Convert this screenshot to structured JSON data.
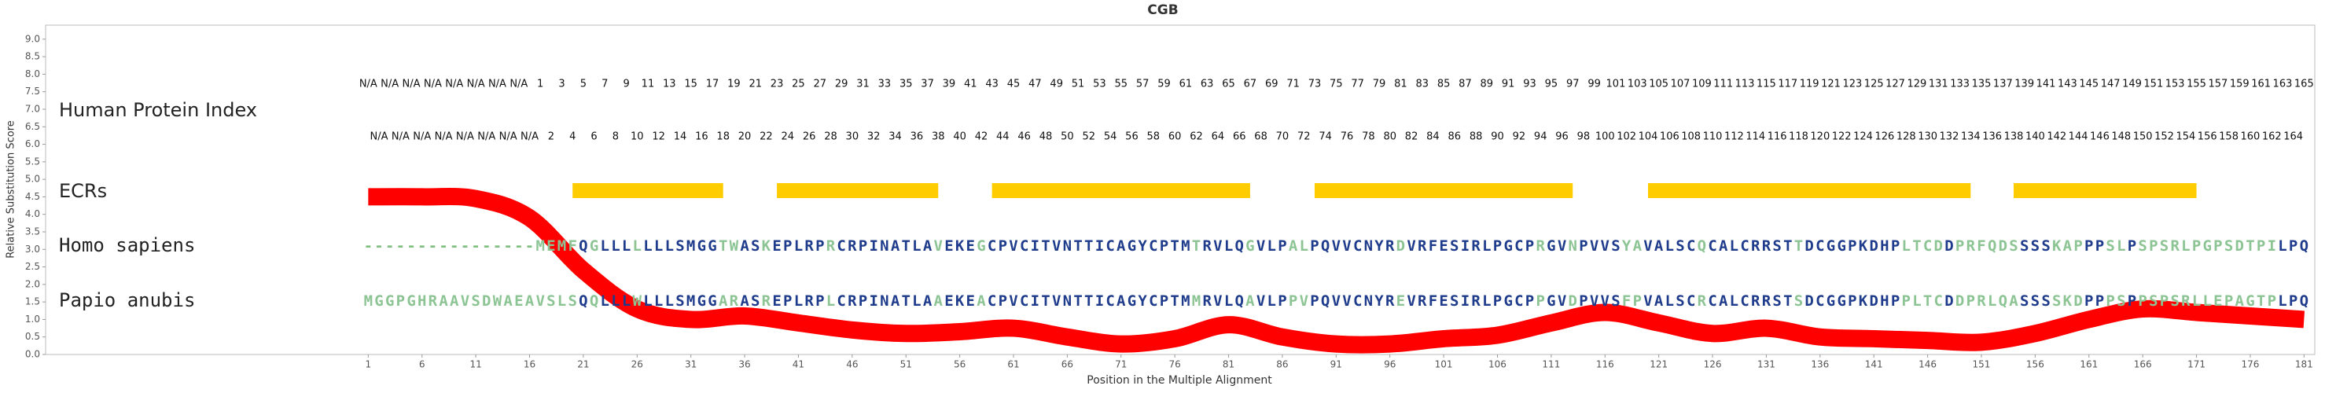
{
  "chart_data": {
    "type": "alignment",
    "title": "CGB",
    "xlabel": "Position in the Multiple Alignment",
    "ylabel": "Relative Substitution Score",
    "xlim": [
      -29,
      182
    ],
    "ylim": [
      0,
      9.4
    ],
    "xticks": [
      1,
      6,
      11,
      16,
      21,
      26,
      31,
      36,
      41,
      46,
      51,
      56,
      61,
      66,
      71,
      76,
      81,
      86,
      91,
      96,
      101,
      106,
      111,
      116,
      121,
      126,
      131,
      136,
      141,
      146,
      151,
      156,
      161,
      166,
      171,
      176,
      181
    ],
    "yticks": [
      {
        "value": 0,
        "label": "0.0"
      },
      {
        "value": 0.5,
        "label": "0.5"
      },
      {
        "value": 1,
        "label": "1.0"
      },
      {
        "value": 1.5,
        "label": "1.5"
      },
      {
        "value": 2,
        "label": "2.0"
      },
      {
        "value": 2.5,
        "label": "2.5"
      },
      {
        "value": 3,
        "label": "3.0"
      },
      {
        "value": 3.5,
        "label": "3.5"
      },
      {
        "value": 4,
        "label": "4.0"
      },
      {
        "value": 4.5,
        "label": "4.5"
      },
      {
        "value": 5,
        "label": "5.0"
      },
      {
        "value": 5.5,
        "label": "5.5"
      },
      {
        "value": 6,
        "label": "6.0"
      },
      {
        "value": 6.5,
        "label": "6.5"
      },
      {
        "value": 7,
        "label": "7.0"
      },
      {
        "value": 7.5,
        "label": "7.5"
      },
      {
        "value": 8,
        "label": "8.0"
      },
      {
        "value": 8.5,
        "label": "8.5"
      },
      {
        "value": 9,
        "label": "9.0"
      }
    ],
    "index_label": "Human Protein Index",
    "protein_index": [
      "N/A",
      "N/A",
      "N/A",
      "N/A",
      "N/A",
      "N/A",
      "N/A",
      "N/A",
      "N/A",
      "N/A",
      "N/A",
      "N/A",
      "N/A",
      "N/A",
      "N/A",
      "N/A",
      1,
      2,
      3,
      4,
      5,
      6,
      7,
      8,
      9,
      10,
      11,
      12,
      13,
      14,
      15,
      16,
      17,
      18,
      19,
      20,
      21,
      22,
      23,
      24,
      25,
      26,
      27,
      28,
      29,
      30,
      31,
      32,
      33,
      34,
      35,
      36,
      37,
      38,
      39,
      40,
      41,
      42,
      43,
      44,
      45,
      46,
      47,
      48,
      49,
      50,
      51,
      52,
      53,
      54,
      55,
      56,
      57,
      58,
      59,
      60,
      61,
      62,
      63,
      64,
      65,
      66,
      67,
      68,
      69,
      70,
      71,
      72,
      73,
      74,
      75,
      76,
      77,
      78,
      79,
      80,
      81,
      82,
      83,
      84,
      85,
      86,
      87,
      88,
      89,
      90,
      91,
      92,
      93,
      94,
      95,
      96,
      97,
      98,
      99,
      100,
      101,
      102,
      103,
      104,
      105,
      106,
      107,
      108,
      109,
      110,
      111,
      112,
      113,
      114,
      115,
      116,
      117,
      118,
      119,
      120,
      121,
      122,
      123,
      124,
      125,
      126,
      127,
      128,
      129,
      130,
      131,
      132,
      133,
      134,
      135,
      136,
      137,
      138,
      139,
      140,
      141,
      142,
      143,
      144,
      145,
      146,
      147,
      148,
      149,
      150,
      151,
      152,
      153,
      154,
      155,
      156,
      157,
      158,
      159,
      160,
      161,
      162,
      163,
      164,
      165
    ],
    "ecr_label": "ECRs",
    "ecr_color": "#ffcc00",
    "ecrs": [
      [
        20,
        34
      ],
      [
        39,
        54
      ],
      [
        59,
        83
      ],
      [
        89,
        113
      ],
      [
        120,
        150
      ],
      [
        154,
        171
      ]
    ],
    "series": [
      {
        "name": "Homo sapiens",
        "sequence": "----------------MEMFQGLLLLLLLSMGGTWASKEPLRPRCRPINATLAVEKEGCPVCITVNTTICAGYCPTMTRVLQGVLPALPQVVCNYRDVRFESIRLPGCPRGVNPVVSYAVALSCQCALCRRSTTDCGGPKDHPLTCDDPRFQDSSSSKAPPPSLPSPSRLPGPSDTPILPQ"
      },
      {
        "name": "Papio anubis",
        "sequence": "MGGPGHRAAVSDWAEAVSLSQQLLLWLLLSMGGARASREPLRPLCRPINATLAAEKEACPVCITVNTTICAGYCPTMMRVLQAVLPPVPQVVCNYREVRFESIRLPGCPPGVDPVVSFPVALSCRCALCRRSTSDCGGPKDHPPLTCDDPRLQASSSSKDPPPSPPSPSRLLEPAGTPLPQ"
      }
    ],
    "score": {
      "color": "#ff0000",
      "x": [
        1,
        6,
        11,
        16,
        21,
        26,
        31,
        36,
        41,
        46,
        51,
        56,
        61,
        66,
        71,
        76,
        81,
        86,
        91,
        96,
        101,
        106,
        111,
        116,
        121,
        126,
        131,
        136,
        141,
        146,
        151,
        156,
        161,
        166,
        171,
        176,
        181
      ],
      "values": [
        4.5,
        4.5,
        4.45,
        3.9,
        2.4,
        1.3,
        1.0,
        1.1,
        0.9,
        0.7,
        0.6,
        0.65,
        0.75,
        0.5,
        0.3,
        0.45,
        0.85,
        0.5,
        0.3,
        0.3,
        0.45,
        0.55,
        0.9,
        1.2,
        0.9,
        0.6,
        0.75,
        0.5,
        0.45,
        0.4,
        0.35,
        0.6,
        1.0,
        1.3,
        1.2,
        1.1,
        1.0
      ]
    }
  }
}
